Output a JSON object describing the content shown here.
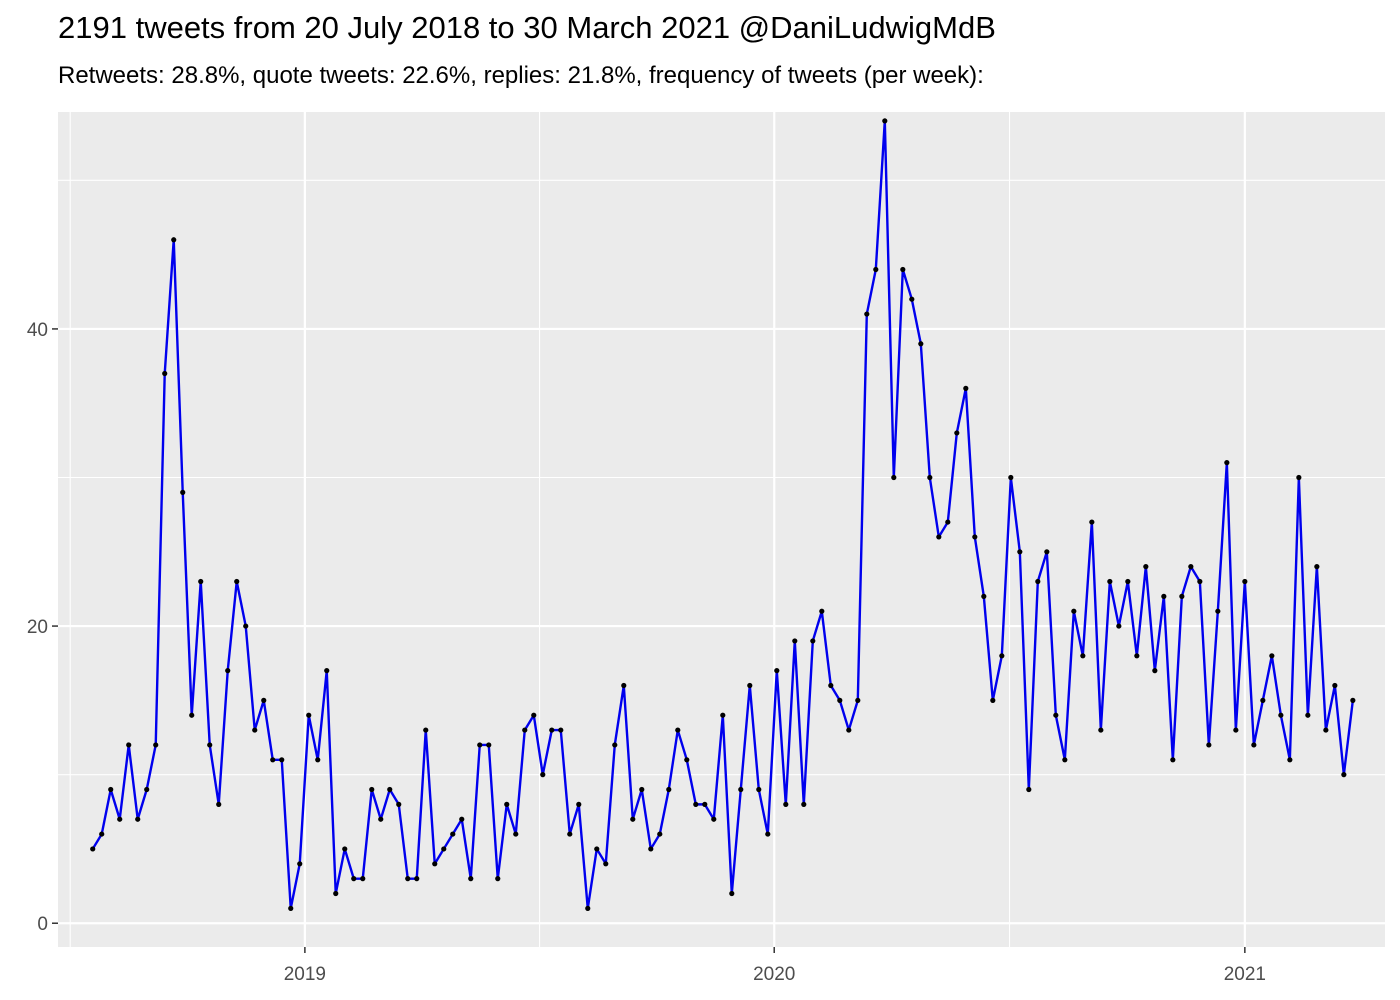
{
  "chart_data": {
    "type": "line",
    "title": "2191 tweets from 20 July 2018 to 30 March 2021 @DaniLudwigMdB",
    "subtitle": "Retweets: 28.8%, quote tweets: 22.6%, replies: 21.8%, frequency of tweets (per week):",
    "xlabel": "",
    "ylabel": "",
    "x_start": "2018-07-20",
    "x_step_days": 7,
    "xlim": [
      "2018-06-23",
      "2021-04-20"
    ],
    "ylim": [
      -1.6,
      54.6
    ],
    "x_ticks": [
      {
        "date": "2019-01-01",
        "label": "2019"
      },
      {
        "date": "2020-01-01",
        "label": "2020"
      },
      {
        "date": "2021-01-01",
        "label": "2021"
      }
    ],
    "y_ticks": [
      0,
      20,
      40
    ],
    "grid": true,
    "line_color": "#0000ee",
    "point_color": "#000000",
    "background_color": "#ebebeb",
    "values": [
      5,
      6,
      9,
      7,
      12,
      7,
      9,
      12,
      37,
      46,
      29,
      14,
      23,
      12,
      8,
      17,
      23,
      20,
      13,
      15,
      11,
      11,
      1,
      4,
      14,
      11,
      17,
      2,
      5,
      3,
      3,
      9,
      7,
      9,
      8,
      3,
      3,
      13,
      4,
      5,
      6,
      7,
      3,
      12,
      12,
      3,
      8,
      6,
      13,
      14,
      10,
      13,
      13,
      6,
      8,
      1,
      5,
      4,
      12,
      16,
      7,
      9,
      5,
      6,
      9,
      13,
      11,
      8,
      8,
      7,
      14,
      2,
      9,
      16,
      9,
      6,
      17,
      8,
      19,
      8,
      19,
      21,
      16,
      15,
      13,
      15,
      41,
      44,
      54,
      30,
      44,
      42,
      39,
      30,
      26,
      27,
      33,
      36,
      26,
      22,
      15,
      18,
      30,
      25,
      9,
      23,
      25,
      14,
      11,
      21,
      18,
      27,
      13,
      23,
      20,
      23,
      18,
      24,
      17,
      22,
      11,
      22,
      24,
      23,
      12,
      21,
      31,
      13,
      23,
      12,
      15,
      18,
      14,
      11,
      30,
      14,
      24,
      13,
      16,
      10,
      15
    ]
  }
}
